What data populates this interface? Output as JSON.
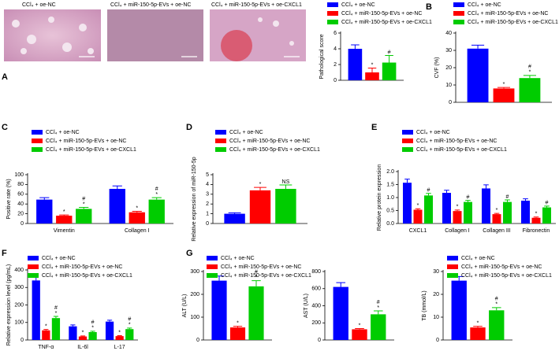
{
  "panel_labels": [
    "A",
    "B",
    "C",
    "D",
    "E",
    "F",
    "G"
  ],
  "images": [
    {
      "caption": "CCl₄ + oe-NC"
    },
    {
      "caption": "CCl₄ + miR-150-5p-EVs + oe-NC"
    },
    {
      "caption": "CCl₄ + miR-150-5p-EVs + oe-CXCL1"
    }
  ],
  "chart_data": [
    {
      "type": "bar",
      "ylabel": "Pathological score",
      "categories": [
        null
      ],
      "ylim": [
        0,
        6
      ],
      "yticks": [
        0,
        2,
        4,
        6
      ],
      "legend": true,
      "series": [
        {
          "name": "CCl₄ + oe-NC",
          "color": "#0000ff",
          "values": [
            4
          ],
          "errors": [
            0.5
          ]
        },
        {
          "name": "CCl₄ + miR-150-5p-EVs + oe-NC",
          "color": "#ff0000",
          "values": [
            1
          ],
          "errors": [
            0.55
          ],
          "annotations": [
            [
              "*"
            ]
          ]
        },
        {
          "name": "CCl₄ + miR-150-5p-EVs + oe-CXCL1",
          "color": "#00cc00",
          "values": [
            2.25
          ],
          "errors": [
            0.9
          ],
          "annotations": [
            [
              "#"
            ]
          ]
        }
      ]
    },
    {
      "type": "bar",
      "ylabel": "CVF (%)",
      "categories": [
        null
      ],
      "ylim": [
        0,
        40
      ],
      "yticks": [
        0,
        10,
        20,
        30,
        40
      ],
      "legend": true,
      "series": [
        {
          "name": "CCl₄ + oe-NC",
          "color": "#0000ff",
          "values": [
            31
          ],
          "errors": [
            2
          ]
        },
        {
          "name": "CCl₄ + miR-150-5p-EVs + oe-NC",
          "color": "#ff0000",
          "values": [
            8
          ],
          "errors": [
            0.6
          ],
          "annotations": [
            [
              "*"
            ]
          ]
        },
        {
          "name": "CCl₄ + miR-150-5p-EVs + oe-CXCL1",
          "color": "#00cc00",
          "values": [
            14
          ],
          "errors": [
            1.5
          ],
          "annotations": [
            [
              "*",
              "#"
            ]
          ]
        }
      ]
    },
    {
      "type": "bar",
      "ylabel": "Positive rate (%)",
      "categories": [
        "Vimentin",
        "Collagen I"
      ],
      "ylim": [
        0,
        100
      ],
      "yticks": [
        0,
        20,
        40,
        60,
        80,
        100
      ],
      "legend": true,
      "series": [
        {
          "name": "CCl₄ + oe-NC",
          "color": "#0000ff",
          "values": [
            49,
            71
          ],
          "errors": [
            4,
            6
          ]
        },
        {
          "name": "CCl₄ + miR-150-5p-EVs + oe-NC",
          "color": "#ff0000",
          "values": [
            16,
            23
          ],
          "errors": [
            1.5,
            2
          ],
          "annotations": [
            [
              "*"
            ],
            [
              "*"
            ]
          ]
        },
        {
          "name": "CCl₄ + miR-150-5p-EVs + oe-CXCL1",
          "color": "#00cc00",
          "values": [
            30,
            49
          ],
          "errors": [
            3,
            4
          ],
          "annotations": [
            [
              "*",
              "#"
            ],
            [
              "*",
              "#"
            ]
          ]
        }
      ]
    },
    {
      "type": "bar",
      "ylabel": "Relative expression of miR-150-5p",
      "categories": [
        null
      ],
      "ylim": [
        0,
        5
      ],
      "yticks": [
        0,
        1,
        2,
        3,
        4,
        5
      ],
      "legend": true,
      "series": [
        {
          "name": "CCl₄ + oe-NC",
          "color": "#0000ff",
          "values": [
            1.0
          ],
          "errors": [
            0.1
          ]
        },
        {
          "name": "CCl₄ + miR-150-5p-EVs + oe-NC",
          "color": "#ff0000",
          "values": [
            3.4
          ],
          "errors": [
            0.3
          ],
          "annotations": [
            [
              "*"
            ]
          ]
        },
        {
          "name": "CCl₄ + miR-150-5p-EVs + oe-CXCL1",
          "color": "#00cc00",
          "values": [
            3.55
          ],
          "errors": [
            0.4
          ],
          "annotations": [
            [
              "NS"
            ]
          ]
        }
      ]
    },
    {
      "type": "bar",
      "ylabel": "Relative protein expression",
      "categories": [
        "CXCL1",
        "Collagen I",
        "Collagen III",
        "Fibronectin"
      ],
      "ylim": [
        0,
        2
      ],
      "yticks": [
        {
          "value": 0,
          "label": "0.0"
        },
        0.5,
        {
          "value": 1,
          "label": "1.0"
        },
        1.5,
        {
          "value": 2,
          "label": "2.0"
        }
      ],
      "legend": true,
      "series": [
        {
          "name": "CCl₄ + oe-NC",
          "color": "#0000ff",
          "values": [
            1.57,
            1.18,
            1.35,
            0.88
          ],
          "errors": [
            0.14,
            0.1,
            0.14,
            0.07
          ]
        },
        {
          "name": "CCl₄ + miR-150-5p-EVs + oe-NC",
          "color": "#ff0000",
          "values": [
            0.53,
            0.48,
            0.36,
            0.22
          ],
          "errors": [
            0.04,
            0.04,
            0.03,
            0.03
          ],
          "annotations": [
            [
              "*"
            ],
            [
              "*"
            ],
            [
              "*"
            ],
            [
              "*"
            ]
          ]
        },
        {
          "name": "CCl₄ + miR-150-5p-EVs + oe-CXCL1",
          "color": "#00cc00",
          "values": [
            1.08,
            0.83,
            0.83,
            0.62
          ],
          "errors": [
            0.08,
            0.06,
            0.08,
            0.05
          ],
          "annotations": [
            [
              "#"
            ],
            [
              "#"
            ],
            [
              "#"
            ],
            [
              "#"
            ]
          ]
        }
      ]
    },
    {
      "type": "bar",
      "ylabel": "Relative expression level (pg/mL)",
      "categories": [
        "TNF-α",
        "IL-6l",
        "L-17"
      ],
      "ylim": [
        0,
        400
      ],
      "yticks": [
        0,
        100,
        200,
        300,
        400
      ],
      "legend": true,
      "series": [
        {
          "name": "CCl₄ + oe-NC",
          "color": "#0000ff",
          "values": [
            340,
            78,
            105
          ],
          "errors": [
            25,
            8,
            8
          ]
        },
        {
          "name": "CCl₄ + miR-150-5p-EVs + oe-NC",
          "color": "#ff0000",
          "values": [
            55,
            20,
            22
          ],
          "errors": [
            5,
            3,
            3
          ],
          "annotations": [
            [
              "*"
            ],
            [
              "*"
            ],
            [
              "*"
            ]
          ]
        },
        {
          "name": "CCl₄ + miR-150-5p-EVs + oe-CXCL1",
          "color": "#00cc00",
          "values": [
            125,
            45,
            62
          ],
          "errors": [
            10,
            5,
            6
          ],
          "annotations": [
            [
              "*",
              "#"
            ],
            [
              "*",
              "#"
            ],
            [
              "*",
              "#"
            ]
          ]
        }
      ]
    },
    {
      "type": "bar",
      "ylabel": "ALT (U/L)",
      "categories": [
        null
      ],
      "ylim": [
        0,
        300
      ],
      "yticks": [
        0,
        100,
        200,
        300
      ],
      "legend": true,
      "series": [
        {
          "name": "CCl₄ + oe-NC",
          "color": "#0000ff",
          "values": [
            260
          ],
          "errors": [
            20
          ]
        },
        {
          "name": "CCl₄ + miR-150-5p-EVs + oe-NC",
          "color": "#ff0000",
          "values": [
            55
          ],
          "errors": [
            5
          ],
          "annotations": [
            [
              "*"
            ]
          ]
        },
        {
          "name": "CCl₄ + miR-150-5p-EVs + oe-CXCL1",
          "color": "#00cc00",
          "values": [
            235
          ],
          "errors": [
            25
          ],
          "annotations": [
            [
              "*",
              "#"
            ]
          ]
        }
      ]
    },
    {
      "type": "bar",
      "ylabel": "AST (U/L)",
      "categories": [
        null
      ],
      "ylim": [
        0,
        800
      ],
      "yticks": [
        0,
        200,
        400,
        600,
        800
      ],
      "legend": false,
      "series": [
        {
          "color": "#0000ff",
          "values": [
            620
          ],
          "errors": [
            50
          ]
        },
        {
          "color": "#ff0000",
          "values": [
            125
          ],
          "errors": [
            8
          ],
          "annotations": [
            [
              "*"
            ]
          ]
        },
        {
          "color": "#00cc00",
          "values": [
            300
          ],
          "errors": [
            40
          ],
          "annotations": [
            [
              "*",
              "#"
            ]
          ]
        }
      ]
    },
    {
      "type": "bar",
      "ylabel": "TB (mmol/L)",
      "categories": [
        null
      ],
      "ylim": [
        0,
        30
      ],
      "yticks": [
        0,
        10,
        20,
        30
      ],
      "legend": true,
      "series": [
        {
          "name": "CCl₄ + oe-NC",
          "color": "#0000ff",
          "values": [
            26
          ],
          "errors": [
            1.8
          ]
        },
        {
          "name": "CCl₄ + miR-150-5p-EVs + oe-NC",
          "color": "#ff0000",
          "values": [
            5.5
          ],
          "errors": [
            0.5
          ],
          "annotations": [
            [
              "*"
            ]
          ]
        },
        {
          "name": "CCl₄ + miR-150-5p-EVs + oe-CXCL1",
          "color": "#00cc00",
          "values": [
            13
          ],
          "errors": [
            1.2
          ],
          "annotations": [
            [
              "*",
              "#"
            ]
          ]
        }
      ]
    }
  ]
}
